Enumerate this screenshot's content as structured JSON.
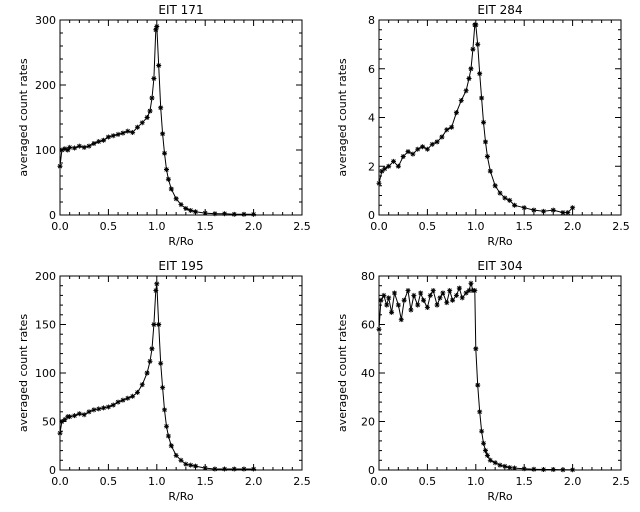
{
  "chart_data": [
    {
      "type": "line",
      "title": "EIT 171",
      "xlabel": "R/Ro",
      "ylabel": "averaged count rates",
      "xlim": [
        0.0,
        2.5
      ],
      "ylim": [
        0,
        300
      ],
      "xticks": [
        0.0,
        0.5,
        1.0,
        1.5,
        2.0,
        2.5
      ],
      "xtick_labels": [
        "0.0",
        "0.5",
        "1.0",
        "1.5",
        "2.0",
        "2.5"
      ],
      "yticks": [
        0,
        100,
        200,
        300
      ],
      "ytick_labels": [
        "0",
        "100",
        "200",
        "300"
      ],
      "marker": "asterisk",
      "grid": false,
      "series": [
        {
          "x": [
            0.0,
            0.02,
            0.05,
            0.08,
            0.1,
            0.15,
            0.2,
            0.25,
            0.3,
            0.35,
            0.4,
            0.45,
            0.5,
            0.55,
            0.6,
            0.65,
            0.7,
            0.75,
            0.8,
            0.85,
            0.9,
            0.93,
            0.95,
            0.97,
            0.99,
            1.0,
            1.02,
            1.04,
            1.06,
            1.08,
            1.1,
            1.12,
            1.15,
            1.2,
            1.25,
            1.3,
            1.35,
            1.4,
            1.5,
            1.6,
            1.7,
            1.8,
            1.9,
            2.0
          ],
          "y": [
            75,
            100,
            102,
            100,
            104,
            103,
            106,
            104,
            106,
            110,
            113,
            115,
            120,
            122,
            124,
            126,
            129,
            127,
            135,
            142,
            150,
            160,
            180,
            210,
            285,
            290,
            230,
            165,
            125,
            95,
            70,
            55,
            40,
            25,
            16,
            10,
            7,
            5,
            3,
            2,
            2,
            1,
            1,
            1
          ]
        }
      ]
    },
    {
      "type": "line",
      "title": "EIT 284",
      "xlabel": "R/Ro",
      "ylabel": "averaged count rates",
      "xlim": [
        0.0,
        2.5
      ],
      "ylim": [
        0,
        8
      ],
      "xticks": [
        0.0,
        0.5,
        1.0,
        1.5,
        2.0,
        2.5
      ],
      "xtick_labels": [
        "0.0",
        "0.5",
        "1.0",
        "1.5",
        "2.0",
        "2.5"
      ],
      "yticks": [
        0,
        2,
        4,
        6,
        8
      ],
      "ytick_labels": [
        "0",
        "2",
        "4",
        "6",
        "8"
      ],
      "marker": "asterisk",
      "grid": false,
      "series": [
        {
          "x": [
            0.0,
            0.03,
            0.06,
            0.1,
            0.15,
            0.2,
            0.25,
            0.3,
            0.35,
            0.4,
            0.45,
            0.5,
            0.55,
            0.6,
            0.65,
            0.7,
            0.75,
            0.8,
            0.85,
            0.9,
            0.93,
            0.95,
            0.97,
            0.99,
            1.0,
            1.02,
            1.04,
            1.06,
            1.08,
            1.1,
            1.12,
            1.15,
            1.2,
            1.25,
            1.3,
            1.35,
            1.4,
            1.5,
            1.6,
            1.7,
            1.8,
            1.9,
            1.95,
            2.0
          ],
          "y": [
            1.3,
            1.8,
            1.9,
            2.0,
            2.2,
            2.0,
            2.4,
            2.6,
            2.5,
            2.7,
            2.8,
            2.7,
            2.9,
            3.0,
            3.2,
            3.5,
            3.6,
            4.2,
            4.7,
            5.1,
            5.6,
            6.0,
            6.8,
            7.8,
            7.8,
            7.0,
            5.8,
            4.8,
            3.8,
            3.0,
            2.4,
            1.8,
            1.2,
            0.9,
            0.7,
            0.6,
            0.4,
            0.3,
            0.2,
            0.15,
            0.2,
            0.1,
            0.1,
            0.3
          ]
        }
      ]
    },
    {
      "type": "line",
      "title": "EIT 195",
      "xlabel": "R/Ro",
      "ylabel": "averaged count rates",
      "xlim": [
        0.0,
        2.5
      ],
      "ylim": [
        0,
        200
      ],
      "xticks": [
        0.0,
        0.5,
        1.0,
        1.5,
        2.0,
        2.5
      ],
      "xtick_labels": [
        "0.0",
        "0.5",
        "1.0",
        "1.5",
        "2.0",
        "2.5"
      ],
      "yticks": [
        0,
        50,
        100,
        150,
        200
      ],
      "ytick_labels": [
        "0",
        "50",
        "100",
        "150",
        "200"
      ],
      "marker": "asterisk",
      "grid": false,
      "series": [
        {
          "x": [
            0.0,
            0.02,
            0.05,
            0.08,
            0.1,
            0.15,
            0.2,
            0.25,
            0.3,
            0.35,
            0.4,
            0.45,
            0.5,
            0.55,
            0.6,
            0.65,
            0.7,
            0.75,
            0.8,
            0.85,
            0.9,
            0.93,
            0.95,
            0.97,
            0.99,
            1.0,
            1.02,
            1.04,
            1.06,
            1.08,
            1.1,
            1.12,
            1.15,
            1.2,
            1.25,
            1.3,
            1.35,
            1.4,
            1.5,
            1.6,
            1.7,
            1.8,
            1.9,
            2.0
          ],
          "y": [
            38,
            50,
            52,
            55,
            55,
            56,
            58,
            57,
            60,
            62,
            63,
            64,
            65,
            67,
            70,
            72,
            74,
            76,
            80,
            88,
            100,
            112,
            125,
            150,
            185,
            192,
            150,
            110,
            85,
            62,
            45,
            35,
            25,
            15,
            10,
            6,
            5,
            4,
            2,
            1,
            1,
            1,
            1,
            1
          ]
        }
      ]
    },
    {
      "type": "line",
      "title": "EIT 304",
      "xlabel": "R/Ro",
      "ylabel": "averaged count rates",
      "xlim": [
        0.0,
        2.5
      ],
      "ylim": [
        0,
        80
      ],
      "xticks": [
        0.0,
        0.5,
        1.0,
        1.5,
        2.0,
        2.5
      ],
      "xtick_labels": [
        "0.0",
        "0.5",
        "1.0",
        "1.5",
        "2.0",
        "2.5"
      ],
      "yticks": [
        0,
        20,
        40,
        60,
        80
      ],
      "ytick_labels": [
        "0",
        "20",
        "40",
        "60",
        "80"
      ],
      "marker": "asterisk",
      "grid": false,
      "series": [
        {
          "x": [
            0.0,
            0.02,
            0.05,
            0.08,
            0.1,
            0.13,
            0.16,
            0.2,
            0.23,
            0.26,
            0.3,
            0.33,
            0.36,
            0.4,
            0.43,
            0.46,
            0.5,
            0.53,
            0.56,
            0.6,
            0.63,
            0.66,
            0.7,
            0.73,
            0.76,
            0.8,
            0.83,
            0.86,
            0.9,
            0.93,
            0.95,
            0.97,
            0.99,
            1.0,
            1.02,
            1.04,
            1.06,
            1.08,
            1.1,
            1.12,
            1.15,
            1.2,
            1.25,
            1.3,
            1.35,
            1.4,
            1.5,
            1.6,
            1.7,
            1.8,
            1.9,
            2.0
          ],
          "y": [
            58,
            70,
            72,
            68,
            71,
            65,
            73,
            68,
            62,
            70,
            74,
            66,
            72,
            68,
            73,
            70,
            67,
            72,
            74,
            68,
            71,
            73,
            69,
            74,
            70,
            72,
            75,
            71,
            73,
            74,
            77,
            74,
            74,
            50,
            35,
            24,
            16,
            11,
            8,
            6,
            4,
            3,
            2,
            1.5,
            1,
            0.8,
            0.5,
            0.3,
            0.2,
            0.2,
            0.1,
            0.1
          ]
        }
      ]
    }
  ]
}
